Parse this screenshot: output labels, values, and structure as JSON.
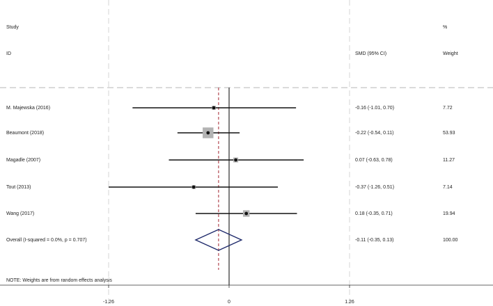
{
  "header": {
    "study_line1": "Study",
    "study_line2": "ID",
    "smd_header": "SMD (95% CI)",
    "weight_line1": "%",
    "weight_line2": "Weight"
  },
  "note": "NOTE: Weights are from random effects analysis",
  "colors": {
    "ci_line": "#111111",
    "weight_box": "#b3b3b3",
    "point": "#111111",
    "diamond": "#1f2a6b",
    "pooled_line": "#a3242f",
    "grid_dash": "#d6d6d6",
    "zero_line": "#000000"
  },
  "chart_data": {
    "type": "forest",
    "x_ticks": [
      {
        "value": -1.26,
        "label": "-1.26"
      },
      {
        "value": 0,
        "label": "0"
      },
      {
        "value": 1.26,
        "label": "1.26"
      }
    ],
    "xlim": [
      -1.26,
      1.26
    ],
    "studies": [
      {
        "label": "M. Majewska (2016)",
        "smd": -0.16,
        "lower": -1.01,
        "upper": 0.7,
        "ci_text": "-0.16 (-1.01, 0.70)",
        "weight": 7.72,
        "weight_text": "7.72"
      },
      {
        "label": "Beaumont (2018)",
        "smd": -0.22,
        "lower": -0.54,
        "upper": 0.11,
        "ci_text": "-0.22 (-0.54, 0.11)",
        "weight": 53.93,
        "weight_text": "53.93"
      },
      {
        "label": "Magadle (2007)",
        "smd": 0.07,
        "lower": -0.63,
        "upper": 0.78,
        "ci_text": "0.07 (-0.63, 0.78)",
        "weight": 11.27,
        "weight_text": "11.27"
      },
      {
        "label": "Tout (2013)",
        "smd": -0.37,
        "lower": -1.26,
        "upper": 0.51,
        "ci_text": "-0.37 (-1.26, 0.51)",
        "weight": 7.14,
        "weight_text": "7.14"
      },
      {
        "label": "Wang (2017)",
        "smd": 0.18,
        "lower": -0.35,
        "upper": 0.71,
        "ci_text": "0.18 (-0.35, 0.71)",
        "weight": 19.94,
        "weight_text": "19.94"
      }
    ],
    "overall": {
      "label": "Overall  (I-squared = 0.0%, p = 0.707)",
      "smd": -0.11,
      "lower": -0.35,
      "upper": 0.13,
      "ci_text": "-0.11 (-0.35, 0.13)",
      "weight": 100.0,
      "weight_text": "100.00"
    }
  }
}
